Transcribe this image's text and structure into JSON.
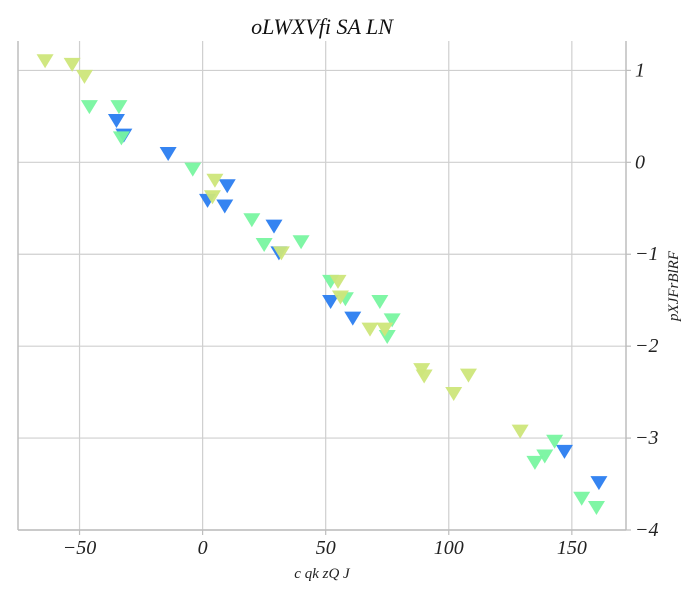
{
  "chart_data": {
    "type": "scatter",
    "title": "oLWXVfi SA LN",
    "xlabel": "c qk  zQ J",
    "ylabel": "pXJFrBlRF",
    "xlim": [
      -75,
      172
    ],
    "ylim": [
      -4,
      1.32
    ],
    "xticks": [
      -50,
      0,
      50,
      100,
      150
    ],
    "yticks": [
      1,
      0,
      -1,
      -2,
      -3,
      -4
    ],
    "y_axis_side": "right",
    "marker": "triangle-down",
    "grid": true,
    "series": [
      {
        "color": "#2a7df0",
        "points": [
          [
            -35,
            0.45
          ],
          [
            -32,
            0.29
          ],
          [
            -14,
            0.09
          ],
          [
            2,
            -0.42
          ],
          [
            10,
            -0.26
          ],
          [
            9,
            -0.48
          ],
          [
            29,
            -0.7
          ],
          [
            31,
            -0.99
          ],
          [
            52,
            -1.52
          ],
          [
            61,
            -1.7
          ],
          [
            147,
            -3.15
          ],
          [
            161,
            -3.49
          ]
        ]
      },
      {
        "color": "#78f5a0",
        "points": [
          [
            -46,
            0.6
          ],
          [
            -34,
            0.6
          ],
          [
            -33,
            0.26
          ],
          [
            -4,
            -0.08
          ],
          [
            20,
            -0.63
          ],
          [
            25,
            -0.9
          ],
          [
            40,
            -0.87
          ],
          [
            52,
            -1.3
          ],
          [
            58,
            -1.49
          ],
          [
            72,
            -1.52
          ],
          [
            77,
            -1.72
          ],
          [
            75,
            -1.9
          ],
          [
            135,
            -3.27
          ],
          [
            139,
            -3.2
          ],
          [
            143,
            -3.04
          ],
          [
            154,
            -3.66
          ],
          [
            160,
            -3.76
          ]
        ]
      },
      {
        "color": "#cde67a",
        "points": [
          [
            -64,
            1.1
          ],
          [
            -53,
            1.06
          ],
          [
            -48,
            0.93
          ],
          [
            4,
            -0.38
          ],
          [
            5,
            -0.2
          ],
          [
            32,
            -0.99
          ],
          [
            55,
            -1.3
          ],
          [
            56,
            -1.47
          ],
          [
            68,
            -1.82
          ],
          [
            74,
            -1.82
          ],
          [
            89,
            -2.26
          ],
          [
            90,
            -2.33
          ],
          [
            102,
            -2.52
          ],
          [
            108,
            -2.32
          ],
          [
            129,
            -2.93
          ]
        ]
      }
    ]
  }
}
